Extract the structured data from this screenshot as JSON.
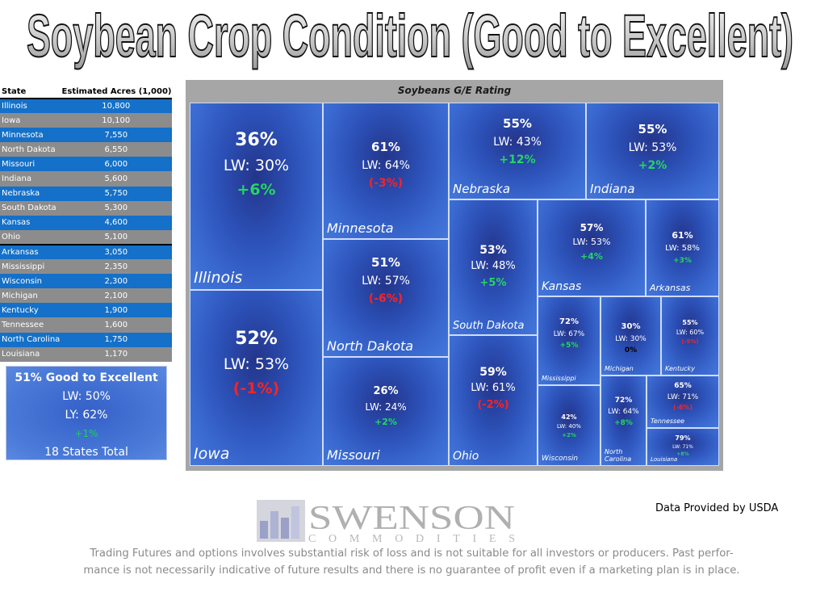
{
  "title": "Soybean Crop Condition (Good to Excellent)",
  "table": {
    "headers": [
      "State",
      "Estimated Acres (1,000)"
    ],
    "rows": [
      {
        "state": "Illinois",
        "acres": "10,800"
      },
      {
        "state": "Iowa",
        "acres": "10,100"
      },
      {
        "state": "Minnesota",
        "acres": "7,550"
      },
      {
        "state": "North Dakota",
        "acres": "6,550"
      },
      {
        "state": "Missouri",
        "acres": "6,000"
      },
      {
        "state": "Indiana",
        "acres": "5,600"
      },
      {
        "state": "Nebraska",
        "acres": "5,750"
      },
      {
        "state": "South Dakota",
        "acres": "5,300"
      },
      {
        "state": "Kansas",
        "acres": "4,600"
      },
      {
        "state": "Ohio",
        "acres": "5,100"
      },
      {
        "state": "Arkansas",
        "acres": "3,050"
      },
      {
        "state": "Mississippi",
        "acres": "2,350"
      },
      {
        "state": "Wisconsin",
        "acres": "2,300"
      },
      {
        "state": "Michigan",
        "acres": "2,100"
      },
      {
        "state": "Kentucky",
        "acres": "1,900"
      },
      {
        "state": "Tennessee",
        "acres": "1,600"
      },
      {
        "state": "North Carolina",
        "acres": "1,750"
      },
      {
        "state": "Louisiana",
        "acres": "1,170"
      }
    ]
  },
  "summary": {
    "headline": "51% Good to Excellent",
    "lw": "LW: 50%",
    "ly": "LY: 62%",
    "change": "+1%",
    "total": "18 States Total"
  },
  "chart_data": {
    "type": "treemap",
    "title": "Soybeans G/E Rating",
    "tiles": [
      {
        "state": "Illinois",
        "pct": "36%",
        "lw": "LW: 30%",
        "change": "+6%",
        "sign": "pos"
      },
      {
        "state": "Iowa",
        "pct": "52%",
        "lw": "LW: 53%",
        "change": "(-1%)",
        "sign": "neg"
      },
      {
        "state": "Minnesota",
        "pct": "61%",
        "lw": "LW: 64%",
        "change": "(-3%)",
        "sign": "neg"
      },
      {
        "state": "North Dakota",
        "pct": "51%",
        "lw": "LW: 57%",
        "change": "(-6%)",
        "sign": "neg"
      },
      {
        "state": "Missouri",
        "pct": "26%",
        "lw": "LW: 24%",
        "change": "+2%",
        "sign": "pos"
      },
      {
        "state": "Nebraska",
        "pct": "55%",
        "lw": "LW: 43%",
        "change": "+12%",
        "sign": "pos"
      },
      {
        "state": "Indiana",
        "pct": "55%",
        "lw": "LW: 53%",
        "change": "+2%",
        "sign": "pos"
      },
      {
        "state": "South Dakota",
        "pct": "53%",
        "lw": "LW: 48%",
        "change": "+5%",
        "sign": "pos"
      },
      {
        "state": "Kansas",
        "pct": "57%",
        "lw": "LW: 53%",
        "change": "+4%",
        "sign": "pos"
      },
      {
        "state": "Arkansas",
        "pct": "61%",
        "lw": "LW: 58%",
        "change": "+3%",
        "sign": "pos"
      },
      {
        "state": "Ohio",
        "pct": "59%",
        "lw": "LW: 61%",
        "change": "(-2%)",
        "sign": "neg"
      },
      {
        "state": "Mississippi",
        "pct": "72%",
        "lw": "LW: 67%",
        "change": "+5%",
        "sign": "pos"
      },
      {
        "state": "Michigan",
        "pct": "30%",
        "lw": "LW: 30%",
        "change": "0%",
        "sign": "zero"
      },
      {
        "state": "Kentucky",
        "pct": "55%",
        "lw": "LW: 60%",
        "change": "(-5%)",
        "sign": "neg"
      },
      {
        "state": "Wisconsin",
        "pct": "42%",
        "lw": "LW: 40%",
        "change": "+2%",
        "sign": "pos"
      },
      {
        "state": "North Carolina",
        "pct": "72%",
        "lw": "LW: 64%",
        "change": "+8%",
        "sign": "pos"
      },
      {
        "state": "Tennessee",
        "pct": "65%",
        "lw": "LW: 71%",
        "change": "(-6%)",
        "sign": "neg"
      },
      {
        "state": "Louisiana",
        "pct": "79%",
        "lw": "LW: 71%",
        "change": "+8%",
        "sign": "pos"
      }
    ]
  },
  "logo": {
    "name": "SWENSON",
    "sub": "COMMODITIES"
  },
  "data_source": "Data Provided by USDA",
  "disclaimer": {
    "line1": "Trading Futures and options involves substantial risk of loss and is not suitable for all investors or producers. Past perfor-",
    "line2": "mance is not necessarily indicative of future results and there is no guarantee of profit even if a marketing plan is in place."
  },
  "colors": {
    "tile": "#2b4fb5",
    "positive": "#25d662",
    "negative": "#ff2222",
    "table_blue": "#1470c8",
    "table_gray": "#8c8c8c"
  }
}
